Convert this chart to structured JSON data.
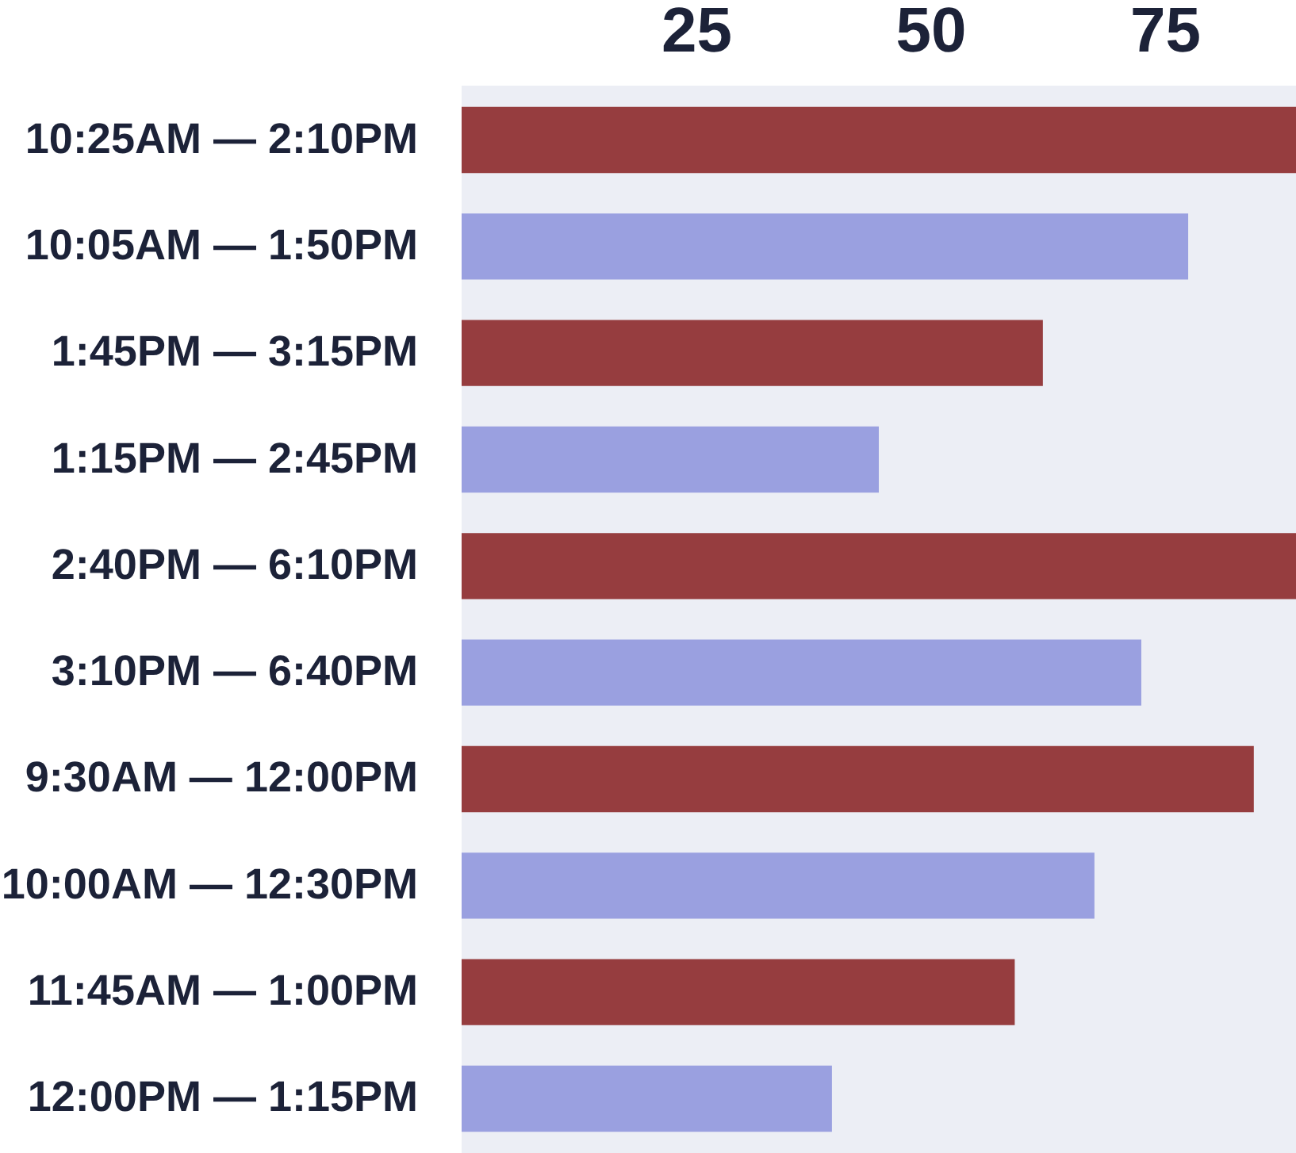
{
  "chart_data": {
    "type": "bar",
    "orientation": "horizontal",
    "categories": [
      "10:25AM — 2:10PM",
      "10:05AM — 1:50PM",
      "1:45PM — 3:15PM",
      "1:15PM — 2:45PM",
      "2:40PM — 6:10PM",
      "3:10PM — 6:40PM",
      "9:30AM — 12:00PM",
      "10:00AM — 12:30PM",
      "11:45AM — 1:00PM",
      "12:00PM — 1:15PM"
    ],
    "values": [
      89,
      77.5,
      62,
      44.5,
      89,
      72.5,
      84.5,
      67.5,
      59,
      39.5
    ],
    "colors": [
      "#963d3f",
      "#9aa0e0",
      "#963d3f",
      "#9aa0e0",
      "#963d3f",
      "#9aa0e0",
      "#963d3f",
      "#9aa0e0",
      "#963d3f",
      "#9aa0e0"
    ],
    "xlim": [
      0,
      89
    ],
    "xticks": [
      25,
      50,
      75
    ],
    "grid": false
  }
}
